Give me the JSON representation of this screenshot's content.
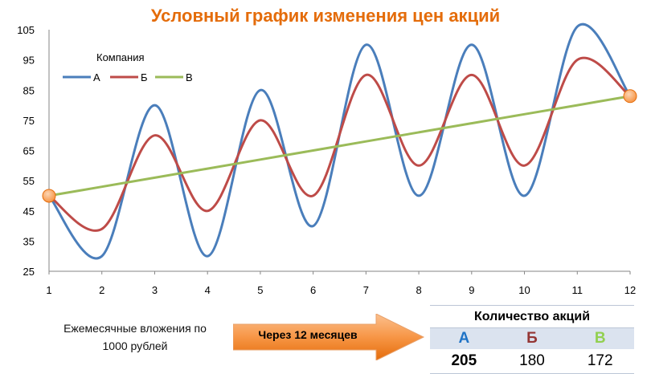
{
  "chart_data": {
    "type": "line",
    "title": "Условный график изменения цен акций",
    "x": [
      1,
      2,
      3,
      4,
      5,
      6,
      7,
      8,
      9,
      10,
      11,
      12
    ],
    "xlim": [
      1,
      12
    ],
    "ylim": [
      25,
      105
    ],
    "y_ticks": [
      25,
      35,
      45,
      55,
      65,
      75,
      85,
      95,
      105
    ],
    "legend_title": "Компания",
    "legend_position": "top-left",
    "grid": false,
    "series": [
      {
        "name": "А",
        "color": "#4A7EBB",
        "values": [
          50,
          30,
          80,
          30,
          85,
          40,
          100,
          50,
          100,
          50,
          106,
          83
        ]
      },
      {
        "name": "Б",
        "color": "#BE4B48",
        "values": [
          50,
          39,
          70,
          45,
          75,
          50,
          90,
          60,
          90,
          60,
          95,
          83
        ]
      },
      {
        "name": "В",
        "color": "#9BBB59",
        "values": [
          50,
          53,
          56,
          59,
          62,
          65,
          68,
          71,
          74,
          77,
          80,
          83
        ]
      }
    ],
    "highlight_points": [
      {
        "x": 1,
        "y": 50,
        "color": "#F79646"
      },
      {
        "x": 12,
        "y": 83,
        "color": "#F79646"
      }
    ]
  },
  "caption": {
    "line1": "Ежемесячные  вложения  по",
    "line2": "1000 рублей"
  },
  "arrow": {
    "label": "Через  12 месяцев",
    "color": "#F79646"
  },
  "shares": {
    "title": "Количество акций",
    "companies": [
      {
        "name": "А",
        "count": "205",
        "color": "#1F73C6"
      },
      {
        "name": "Б",
        "count": "180",
        "color": "#943634"
      },
      {
        "name": "В",
        "count": "172",
        "color": "#92D050"
      }
    ]
  }
}
